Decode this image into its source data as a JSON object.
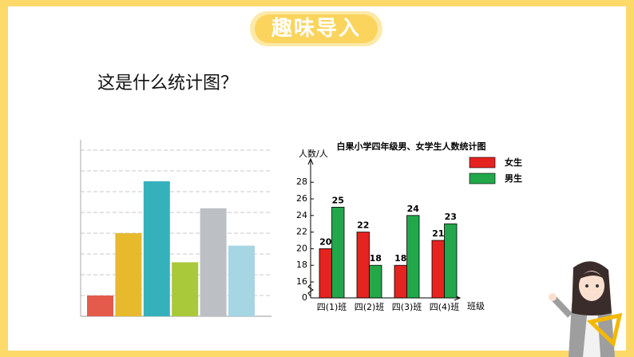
{
  "header": {
    "title": "趣味导入"
  },
  "question": "这是什么统计图？",
  "chart_data": [
    {
      "type": "bar",
      "categories": [
        null,
        null,
        null,
        null,
        null,
        null
      ],
      "values": [
        1,
        4,
        6.5,
        2.6,
        5.2,
        3.4
      ],
      "colors": [
        "#e45a4b",
        "#e7b92c",
        "#35b1bc",
        "#a9c83a",
        "#bcbfc3",
        "#a6d5e3"
      ],
      "ylim": [
        0,
        8.5
      ],
      "yticks": [
        1,
        2,
        3,
        4,
        5,
        6,
        7,
        8
      ],
      "grid": true
    },
    {
      "type": "grouped_bar",
      "title": "白果小学四年级男、女学生人数统计图",
      "ylabel": "人数/人",
      "xlabel": "班级",
      "categories": [
        "四(1)班",
        "四(2)班",
        "四(3)班",
        "四(4)班"
      ],
      "series": [
        {
          "name": "女生",
          "color": "#e52320",
          "values": [
            20,
            22,
            18,
            21
          ]
        },
        {
          "name": "男生",
          "color": "#22a84a",
          "values": [
            25,
            18,
            24,
            23
          ]
        }
      ],
      "ylim": [
        0,
        31
      ],
      "yticks": [
        0,
        16,
        18,
        20,
        22,
        24,
        26,
        28
      ],
      "axis_break": true,
      "legend": "upper right",
      "data_labels": true
    }
  ]
}
